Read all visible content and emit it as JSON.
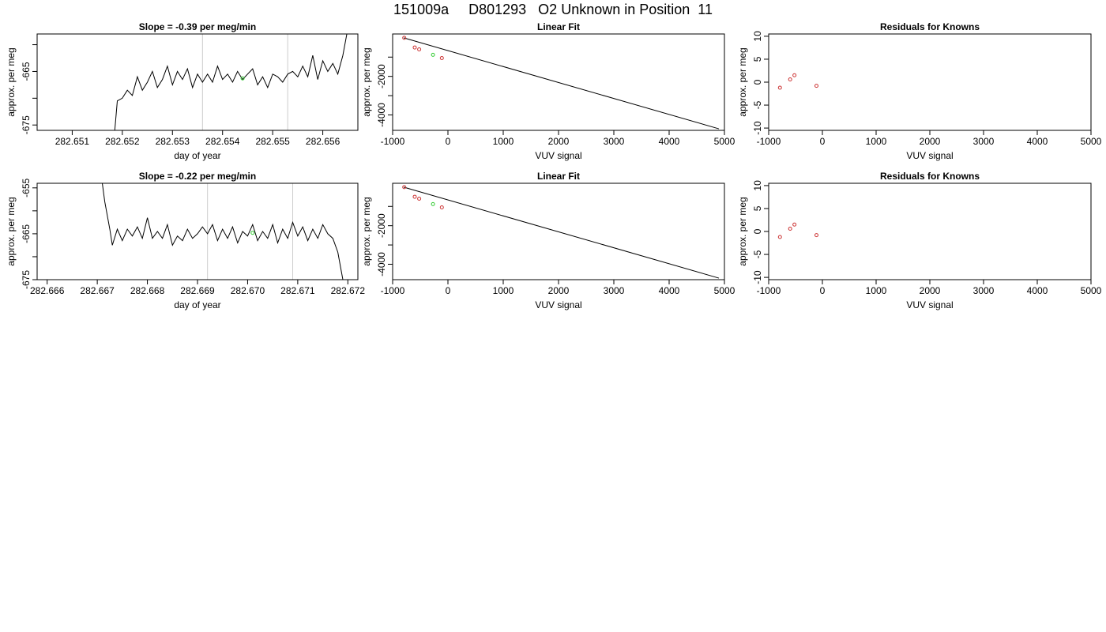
{
  "page_title": "151009a     D801293   O2 Unknown in Position  11",
  "chart_data": [
    {
      "type": "line",
      "title": "Slope =  -0.39  per meg/min",
      "xlabel": "day of year",
      "ylabel": "approx. per meg",
      "xlim": [
        282.6503,
        282.6567
      ],
      "ylim": [
        -676,
        -658
      ],
      "x_ticks": [
        282.651,
        282.652,
        282.653,
        282.654,
        282.655,
        282.656
      ],
      "x_tick_labels": [
        "282.651",
        "282.652",
        "282.653",
        "282.654",
        "282.655",
        "282.656"
      ],
      "y_ticks": [
        -675,
        -670,
        -665,
        -660
      ],
      "y_tick_labels": [
        "-675",
        "",
        "-665",
        ""
      ],
      "vlines": [
        282.6536,
        282.6553
      ],
      "line_color": "#000000",
      "vline_color": "#cccccc",
      "marker_color": "#33cc33",
      "marker": {
        "x": 282.6544,
        "y": -666.3
      },
      "series": [
        {
          "x": [
            282.65185,
            282.6519,
            282.652,
            282.6521,
            282.6522,
            282.6523,
            282.6524,
            282.6525,
            282.6526,
            282.6527,
            282.6528,
            282.6529,
            282.653,
            282.6531,
            282.6532,
            282.6533,
            282.6534,
            282.6535,
            282.6536,
            282.6537,
            282.6538,
            282.6539,
            282.654,
            282.6541,
            282.6542,
            282.6543,
            282.6544,
            282.6545,
            282.6546,
            282.6547,
            282.6548,
            282.6549,
            282.655,
            282.6551,
            282.6552,
            282.6553,
            282.6554,
            282.6555,
            282.6556,
            282.6557,
            282.6558,
            282.6559,
            282.656,
            282.6561,
            282.6562,
            282.6563,
            282.6564,
            282.6565
          ],
          "y": [
            -676,
            -670.5,
            -670,
            -668.5,
            -669.5,
            -666,
            -668.5,
            -667,
            -665,
            -668,
            -666.5,
            -664,
            -667.5,
            -665,
            -666.5,
            -664.5,
            -668,
            -665.5,
            -667,
            -665.5,
            -667,
            -664,
            -666.5,
            -665.5,
            -667,
            -665,
            -666.5,
            -665.5,
            -664.5,
            -667.5,
            -666,
            -668,
            -665.5,
            -666,
            -667,
            -665.5,
            -665,
            -666,
            -664,
            -666,
            -662,
            -666.5,
            -663,
            -665,
            -663.5,
            -665.5,
            -662,
            -657
          ]
        }
      ]
    },
    {
      "type": "scatter",
      "title": "Linear Fit",
      "xlabel": "VUV signal",
      "ylabel": "approx. per meg",
      "xlim": [
        -1000,
        5000
      ],
      "ylim": [
        -4800,
        200
      ],
      "x_ticks": [
        -1000,
        0,
        1000,
        2000,
        3000,
        4000,
        5000
      ],
      "x_tick_labels": [
        "-1000",
        "0",
        "1000",
        "2000",
        "3000",
        "4000",
        "5000"
      ],
      "y_ticks": [
        -4000,
        -3000,
        -2000,
        -1000
      ],
      "y_tick_labels": [
        "-4000",
        "",
        "-2000",
        ""
      ],
      "fit_line": {
        "x": [
          -800,
          4900
        ],
        "y": [
          -0.3,
          -4720
        ]
      },
      "line_color": "#000000",
      "point_color": "#cc3333",
      "green_color": "#33cc33",
      "knowns": {
        "x": [
          -790,
          -600,
          -520,
          -110
        ],
        "y": [
          -1.4,
          -500,
          -600,
          -1050
        ]
      },
      "unknown": {
        "x": [
          -270
        ],
        "y": [
          -880
        ]
      }
    },
    {
      "type": "scatter",
      "title": "Residuals for Knowns",
      "xlabel": "VUV signal",
      "ylabel": "approx. per meg",
      "xlim": [
        -1000,
        5000
      ],
      "ylim": [
        -10.5,
        10.5
      ],
      "x_ticks": [
        -1000,
        0,
        1000,
        2000,
        3000,
        4000,
        5000
      ],
      "x_tick_labels": [
        "-1000",
        "0",
        "1000",
        "2000",
        "3000",
        "4000",
        "5000"
      ],
      "y_ticks": [
        -10,
        -5,
        0,
        5,
        10
      ],
      "y_tick_labels": [
        "-10",
        "-5",
        "0",
        "5",
        "10"
      ],
      "point_color": "#cc3333",
      "points": {
        "x": [
          -790,
          -600,
          -520,
          -110
        ],
        "y": [
          -1.2,
          0.6,
          1.5,
          -0.8
        ]
      }
    },
    {
      "type": "line",
      "title": "Slope =  -0.22  per meg/min",
      "xlabel": "day of year",
      "ylabel": "approx. per meg",
      "xlim": [
        282.6658,
        282.6722
      ],
      "ylim": [
        -675,
        -654
      ],
      "x_ticks": [
        282.666,
        282.667,
        282.668,
        282.669,
        282.67,
        282.671,
        282.672
      ],
      "x_tick_labels": [
        "282.666",
        "282.667",
        "282.668",
        "282.669",
        "282.670",
        "282.671",
        "282.672"
      ],
      "y_ticks": [
        -675,
        -670,
        -665,
        -660,
        -655
      ],
      "y_tick_labels": [
        "-675",
        "",
        "-665",
        "",
        "-655"
      ],
      "vlines": [
        282.6692,
        282.6709
      ],
      "line_color": "#000000",
      "vline_color": "#cccccc",
      "marker_color": "#33cc33",
      "marker": {
        "x": 282.6701,
        "y": -664.8
      },
      "series": [
        {
          "x": [
            282.6671,
            282.66715,
            282.6672,
            282.66725,
            282.6673,
            282.6674,
            282.6675,
            282.6676,
            282.6677,
            282.6678,
            282.6679,
            282.668,
            282.6681,
            282.6682,
            282.6683,
            282.6684,
            282.6685,
            282.6686,
            282.6687,
            282.6688,
            282.6689,
            282.669,
            282.6691,
            282.6692,
            282.6693,
            282.6694,
            282.6695,
            282.6696,
            282.6697,
            282.6698,
            282.6699,
            282.67,
            282.6701,
            282.6702,
            282.6703,
            282.6704,
            282.6705,
            282.6706,
            282.6707,
            282.6708,
            282.6709,
            282.671,
            282.6711,
            282.6712,
            282.6713,
            282.6714,
            282.6715,
            282.6716,
            282.6717,
            282.6718,
            282.6719
          ],
          "y": [
            -654,
            -658,
            -661,
            -664,
            -667.5,
            -664,
            -666.5,
            -664,
            -665.5,
            -663.5,
            -666,
            -661.5,
            -666,
            -664.5,
            -666,
            -663,
            -667.5,
            -665.5,
            -666.5,
            -664,
            -666,
            -665,
            -663.5,
            -665,
            -663,
            -666.5,
            -664,
            -666,
            -663.5,
            -667,
            -664.5,
            -665.5,
            -663,
            -666.5,
            -664.5,
            -666,
            -663,
            -667,
            -664,
            -666,
            -662.5,
            -665.5,
            -663.5,
            -666.5,
            -664,
            -666,
            -663,
            -665,
            -666,
            -669,
            -675
          ]
        }
      ]
    },
    {
      "type": "scatter",
      "title": "Linear Fit",
      "xlabel": "VUV signal",
      "ylabel": "approx. per meg",
      "xlim": [
        -1000,
        5000
      ],
      "ylim": [
        -4800,
        200
      ],
      "x_ticks": [
        -1000,
        0,
        1000,
        2000,
        3000,
        4000,
        5000
      ],
      "x_tick_labels": [
        "-1000",
        "0",
        "1000",
        "2000",
        "3000",
        "4000",
        "5000"
      ],
      "y_ticks": [
        -4000,
        -3000,
        -2000,
        -1000
      ],
      "y_tick_labels": [
        "-4000",
        "",
        "-2000",
        ""
      ],
      "fit_line": {
        "x": [
          -800,
          4900
        ],
        "y": [
          -0.3,
          -4720
        ]
      },
      "line_color": "#000000",
      "point_color": "#cc3333",
      "green_color": "#33cc33",
      "knowns": {
        "x": [
          -790,
          -600,
          -520,
          -110
        ],
        "y": [
          -1.4,
          -500,
          -600,
          -1050
        ]
      },
      "unknown": {
        "x": [
          -270
        ],
        "y": [
          -880
        ]
      }
    },
    {
      "type": "scatter",
      "title": "Residuals for Knowns",
      "xlabel": "VUV signal",
      "ylabel": "approx. per meg",
      "xlim": [
        -1000,
        5000
      ],
      "ylim": [
        -10.5,
        10.5
      ],
      "x_ticks": [
        -1000,
        0,
        1000,
        2000,
        3000,
        4000,
        5000
      ],
      "x_tick_labels": [
        "-1000",
        "0",
        "1000",
        "2000",
        "3000",
        "4000",
        "5000"
      ],
      "y_ticks": [
        -10,
        -5,
        0,
        5,
        10
      ],
      "y_tick_labels": [
        "-10",
        "-5",
        "0",
        "5",
        "10"
      ],
      "point_color": "#cc3333",
      "points": {
        "x": [
          -790,
          -600,
          -520,
          -110
        ],
        "y": [
          -1.2,
          0.6,
          1.5,
          -0.8
        ]
      }
    }
  ]
}
